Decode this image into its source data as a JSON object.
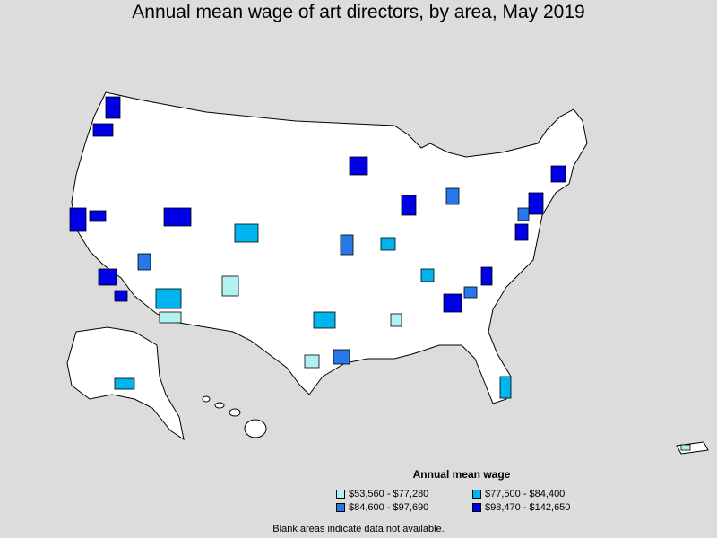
{
  "title": "Annual mean wage of art directors, by area, May 2019",
  "legend": {
    "title": "Annual mean wage",
    "items": [
      {
        "label": "$53,560 - $77,280",
        "color": "#b3f0f0"
      },
      {
        "label": "$77,500 - $84,400",
        "color": "#00b4f0"
      },
      {
        "label": "$84,600 - $97,690",
        "color": "#2878e8"
      },
      {
        "label": "$98,470 - $142,650",
        "color": "#0000e6"
      }
    ]
  },
  "footnote": "Blank areas indicate data not available.",
  "colors": {
    "background": "#dcdcdc",
    "land": "#ffffff",
    "border": "#000000"
  }
}
